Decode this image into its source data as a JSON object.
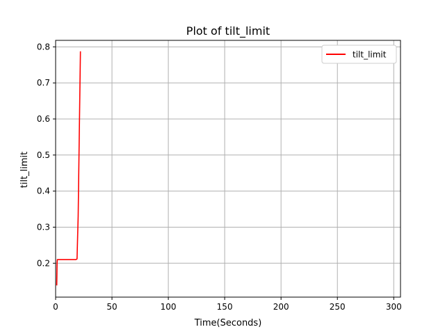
{
  "colors": {
    "line": "#ff0000",
    "grid": "#b0b0b0",
    "axis": "#000000",
    "background": "#ffffff"
  },
  "chart_data": {
    "type": "line",
    "title": "Plot of tilt_limit",
    "xlabel": "Time(Seconds)",
    "ylabel": "tilt_limit",
    "xlim": [
      0,
      306
    ],
    "ylim": [
      0.106,
      0.818
    ],
    "xticks": [
      0,
      50,
      100,
      150,
      200,
      250,
      300
    ],
    "yticks": [
      0.2,
      0.3,
      0.4,
      0.5,
      0.6,
      0.7,
      0.8
    ],
    "xtick_labels": [
      "0",
      "50",
      "100",
      "150",
      "200",
      "250",
      "300"
    ],
    "ytick_labels": [
      "0.2",
      "0.3",
      "0.4",
      "0.5",
      "0.6",
      "0.7",
      "0.8"
    ],
    "grid": true,
    "legend_position": "top-right",
    "series": [
      {
        "name": "tilt_limit",
        "color": "#ff0000",
        "x": [
          1.0,
          1.3,
          1.5,
          2.0,
          5,
          10,
          15,
          18,
          19,
          20,
          21,
          22
        ],
        "y": [
          0.14,
          0.2,
          0.21,
          0.21,
          0.21,
          0.21,
          0.21,
          0.21,
          0.212,
          0.33,
          0.56,
          0.786
        ]
      }
    ]
  }
}
